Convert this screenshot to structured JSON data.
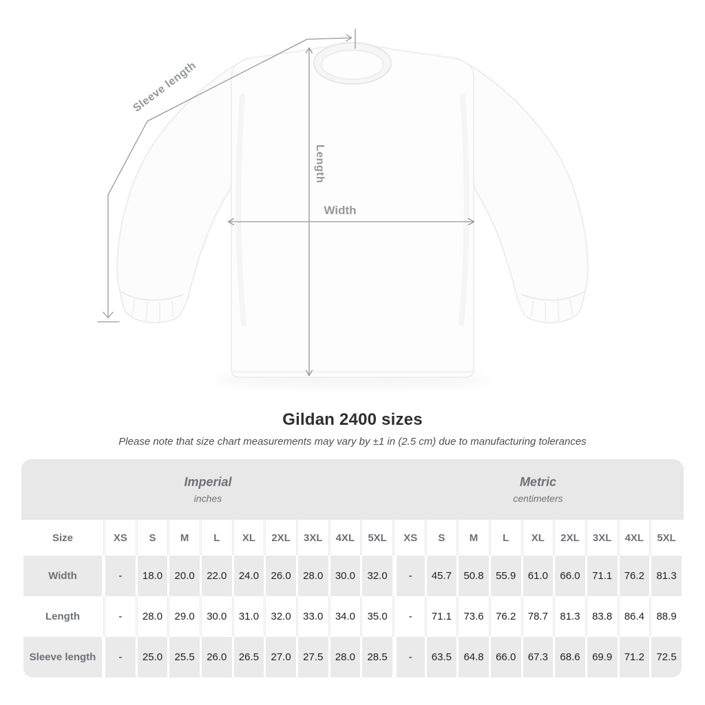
{
  "diagram": {
    "labels": {
      "sleeve_length": "Sleeve length",
      "length": "Length",
      "width": "Width"
    }
  },
  "title": "Gildan 2400 sizes",
  "subtitle": "Please note that size chart measurements may vary by ±1 in (2.5 cm) due to manufacturing tolerances",
  "table": {
    "size_header": "Size",
    "groups": [
      {
        "label": "Imperial",
        "sublabel": "inches"
      },
      {
        "label": "Metric",
        "sublabel": "centimeters"
      }
    ],
    "sizes": [
      "XS",
      "S",
      "M",
      "L",
      "XL",
      "2XL",
      "3XL",
      "4XL",
      "5XL"
    ],
    "rows": [
      {
        "label": "Width",
        "imperial": [
          "-",
          "18.0",
          "20.0",
          "22.0",
          "24.0",
          "26.0",
          "28.0",
          "30.0",
          "32.0"
        ],
        "metric": [
          "-",
          "45.7",
          "50.8",
          "55.9",
          "61.0",
          "66.0",
          "71.1",
          "76.2",
          "81.3"
        ]
      },
      {
        "label": "Length",
        "imperial": [
          "-",
          "28.0",
          "29.0",
          "30.0",
          "31.0",
          "32.0",
          "33.0",
          "34.0",
          "35.0"
        ],
        "metric": [
          "-",
          "71.1",
          "73.6",
          "76.2",
          "78.7",
          "81.3",
          "83.8",
          "86.4",
          "88.9"
        ]
      },
      {
        "label": "Sleeve length",
        "imperial": [
          "-",
          "25.0",
          "25.5",
          "26.0",
          "26.5",
          "27.0",
          "27.5",
          "28.0",
          "28.5"
        ],
        "metric": [
          "-",
          "63.5",
          "64.8",
          "66.0",
          "67.3",
          "68.6",
          "69.9",
          "71.2",
          "72.5"
        ]
      }
    ]
  },
  "colors": {
    "band": "#e8e8e8",
    "row_stripe": "#eaeaea",
    "header_text": "#6d7177",
    "value_text": "#1f1f1f",
    "measure_line": "#94979a",
    "measure_label": "#94979b",
    "title_text": "#2e2e2e",
    "note_text": "#4e4e4e"
  }
}
